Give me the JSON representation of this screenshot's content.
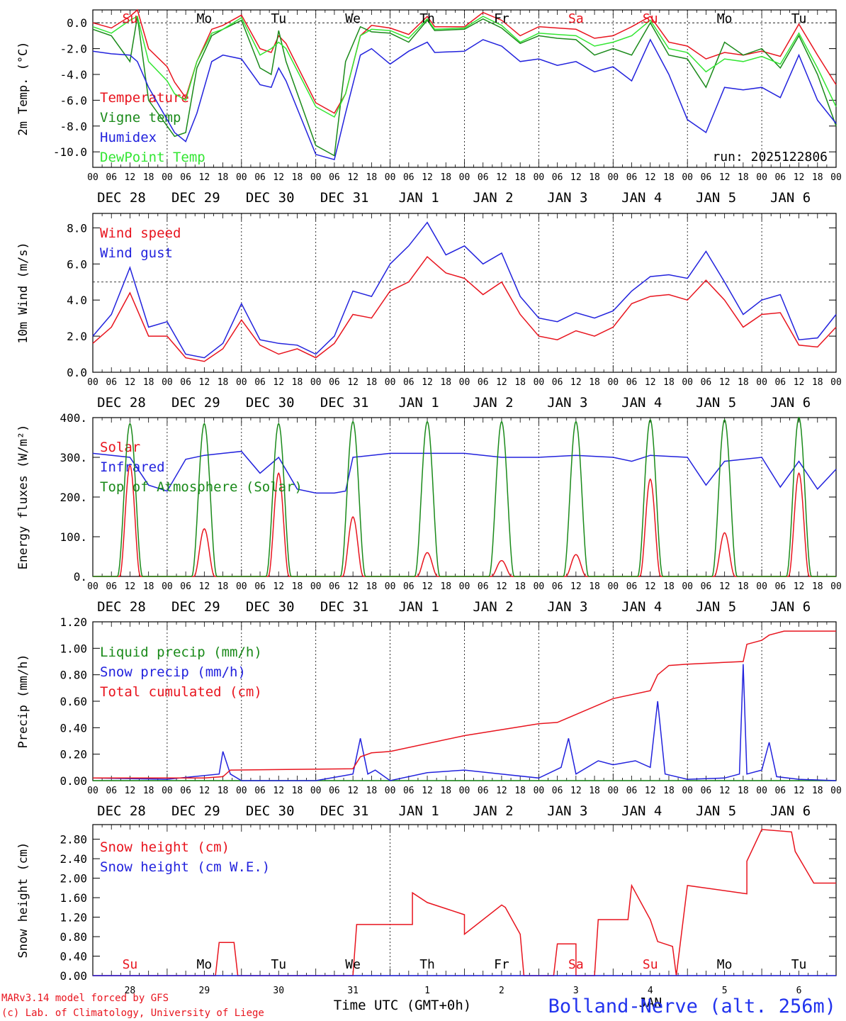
{
  "meta": {
    "run_label": "run: 2025122806",
    "credit_line1": "MARv3.14 model forced by GFS",
    "credit_line2": "(c) Lab. of Climatology, University of Liege",
    "station": "Bolland-Nerve (alt. 256m)",
    "xlabel": "Time UTC (GMT+0h)",
    "colors": {
      "red": "#e8141e",
      "green": "#1a8a1a",
      "blue": "#2222dd",
      "lightgreen": "#33e633",
      "black": "#000000"
    }
  },
  "hour_ticks": [
    "00",
    "06",
    "12",
    "18"
  ],
  "date_labels": [
    "DEC 28",
    "DEC 29",
    "DEC 30",
    "DEC 31",
    "JAN  1",
    "JAN  2",
    "JAN  3",
    "JAN  4",
    "JAN  5",
    "JAN  6"
  ],
  "day_numbers": [
    "28",
    "29",
    "30",
    "31",
    "1",
    "2",
    "3",
    "4",
    "5",
    "6"
  ],
  "month_label": "JAN",
  "weekdays": [
    {
      "label": "Su",
      "weekend": true,
      "day": 0.5
    },
    {
      "label": "Mo",
      "weekend": false,
      "day": 1.5
    },
    {
      "label": "Tu",
      "weekend": false,
      "day": 2.5
    },
    {
      "label": "We",
      "weekend": false,
      "day": 3.5
    },
    {
      "label": "Th",
      "weekend": false,
      "day": 4.5
    },
    {
      "label": "Fr",
      "weekend": false,
      "day": 5.5
    },
    {
      "label": "Sa",
      "weekend": true,
      "day": 6.5
    },
    {
      "label": "Su",
      "weekend": true,
      "day": 7.5
    },
    {
      "label": "Mo",
      "weekend": false,
      "day": 8.5
    },
    {
      "label": "Tu",
      "weekend": false,
      "day": 9.5
    }
  ],
  "chart_data": [
    {
      "id": "temperature",
      "type": "line",
      "ylabel": "2m Temp. (°C)",
      "ylim": [
        -11.2,
        1.0
      ],
      "yticks": [
        -10,
        -8,
        -6,
        -4,
        -2,
        0
      ],
      "ytick_labels": [
        "-10.0",
        "-8.0",
        "-6.0",
        "-4.0",
        "-2.0",
        "0.0"
      ],
      "hline": 0,
      "weekday_row": true,
      "series": [
        {
          "name": "Temperature",
          "color": "red",
          "x": [
            0,
            0.25,
            0.5,
            0.6,
            0.75,
            1.0,
            1.1,
            1.25,
            1.4,
            1.6,
            1.75,
            2.0,
            2.25,
            2.4,
            2.5,
            2.6,
            3.0,
            3.25,
            3.4,
            3.6,
            3.75,
            4.0,
            4.25,
            4.5,
            4.6,
            5.0,
            5.25,
            5.5,
            5.75,
            6.0,
            6.25,
            6.5,
            6.75,
            7.0,
            7.25,
            7.5,
            7.75,
            8.0,
            8.25,
            8.5,
            8.75,
            9.0,
            9.25,
            9.5,
            9.75,
            10.0
          ],
          "y": [
            0.0,
            -0.4,
            0.5,
            1.0,
            -2.0,
            -3.4,
            -4.6,
            -5.8,
            -3.0,
            -0.5,
            -0.2,
            0.6,
            -2.0,
            -2.3,
            -1.0,
            -1.6,
            -6.2,
            -7.0,
            -5.5,
            -1.0,
            -0.2,
            -0.4,
            -0.9,
            0.5,
            -0.3,
            -0.3,
            0.8,
            0.2,
            -1.0,
            -0.3,
            -0.4,
            -0.5,
            -1.2,
            -1.0,
            -0.3,
            0.5,
            -1.5,
            -1.8,
            -2.8,
            -2.3,
            -2.5,
            -2.2,
            -2.6,
            -0.1,
            -2.5,
            -4.8
          ]
        },
        {
          "name": "Vigne temp",
          "color": "green",
          "x": [
            0,
            0.25,
            0.5,
            0.6,
            0.75,
            1.0,
            1.1,
            1.25,
            1.4,
            1.6,
            1.75,
            2.0,
            2.25,
            2.4,
            2.5,
            2.6,
            3.0,
            3.25,
            3.4,
            3.6,
            3.75,
            4.0,
            4.25,
            4.5,
            4.6,
            5.0,
            5.25,
            5.5,
            5.75,
            6.0,
            6.25,
            6.5,
            6.75,
            7.0,
            7.25,
            7.5,
            7.75,
            8.0,
            8.25,
            8.5,
            8.75,
            9.0,
            9.25,
            9.5,
            9.75,
            10.0
          ],
          "y": [
            -0.5,
            -1.0,
            -3.0,
            0.5,
            -6.0,
            -8.0,
            -8.8,
            -8.5,
            -3.5,
            -1.0,
            -0.5,
            0.2,
            -3.5,
            -4.0,
            -0.6,
            -3.0,
            -9.5,
            -10.3,
            -3.0,
            -0.3,
            -0.7,
            -0.8,
            -1.5,
            0.2,
            -0.6,
            -0.5,
            0.3,
            -0.4,
            -1.6,
            -1.0,
            -1.2,
            -1.3,
            -2.5,
            -2.0,
            -2.5,
            0.0,
            -2.5,
            -2.8,
            -5.0,
            -1.5,
            -2.5,
            -2.0,
            -3.5,
            -1.0,
            -4.0,
            -8.0
          ]
        },
        {
          "name": "Humidex",
          "color": "blue",
          "x": [
            0,
            0.25,
            0.5,
            0.6,
            0.75,
            1.0,
            1.1,
            1.25,
            1.4,
            1.6,
            1.75,
            2.0,
            2.25,
            2.4,
            2.5,
            2.6,
            3.0,
            3.25,
            3.4,
            3.6,
            3.75,
            4.0,
            4.25,
            4.5,
            4.6,
            5.0,
            5.25,
            5.5,
            5.75,
            6.0,
            6.25,
            6.5,
            6.75,
            7.0,
            7.25,
            7.5,
            7.75,
            8.0,
            8.25,
            8.5,
            8.75,
            9.0,
            9.25,
            9.5,
            9.75,
            10.0
          ],
          "y": [
            -2.2,
            -2.4,
            -2.5,
            -3.0,
            -5.0,
            -7.5,
            -8.5,
            -9.2,
            -7.0,
            -3.0,
            -2.5,
            -2.8,
            -4.8,
            -5.0,
            -3.5,
            -4.5,
            -10.2,
            -10.6,
            -7.0,
            -2.5,
            -2.0,
            -3.2,
            -2.2,
            -1.5,
            -2.3,
            -2.2,
            -1.3,
            -1.8,
            -3.0,
            -2.8,
            -3.3,
            -3.0,
            -3.8,
            -3.4,
            -4.5,
            -1.3,
            -4.0,
            -7.5,
            -8.5,
            -5.0,
            -5.2,
            -5.0,
            -5.8,
            -2.5,
            -6.0,
            -7.8
          ]
        },
        {
          "name": "DewPoint Temp",
          "color": "lightgreen",
          "x": [
            0,
            0.25,
            0.5,
            0.6,
            0.75,
            1.0,
            1.1,
            1.25,
            1.4,
            1.6,
            1.75,
            2.0,
            2.25,
            2.4,
            2.5,
            2.6,
            3.0,
            3.25,
            3.4,
            3.6,
            3.75,
            4.0,
            4.25,
            4.5,
            4.6,
            5.0,
            5.25,
            5.5,
            5.75,
            6.0,
            6.25,
            6.5,
            6.75,
            7.0,
            7.25,
            7.5,
            7.75,
            8.0,
            8.25,
            8.5,
            8.75,
            9.0,
            9.25,
            9.5,
            9.75,
            10.0
          ],
          "y": [
            -0.3,
            -0.8,
            0.2,
            0.5,
            -3.0,
            -4.5,
            -5.5,
            -6.0,
            -3.0,
            -0.8,
            -0.5,
            0.4,
            -2.5,
            -2.0,
            -1.5,
            -2.0,
            -6.5,
            -7.3,
            -5.5,
            -1.0,
            -0.5,
            -0.6,
            -1.2,
            0.3,
            -0.5,
            -0.4,
            0.5,
            -0.2,
            -1.5,
            -0.8,
            -0.9,
            -1.0,
            -1.8,
            -1.5,
            -1.0,
            0.2,
            -2.0,
            -2.3,
            -3.8,
            -2.8,
            -3.0,
            -2.6,
            -3.2,
            -0.8,
            -3.5,
            -6.5
          ]
        }
      ]
    },
    {
      "id": "wind",
      "type": "line",
      "ylabel": "10m Wind (m/s)",
      "ylim": [
        0,
        8.8
      ],
      "yticks": [
        0,
        2,
        4,
        6,
        8
      ],
      "ytick_labels": [
        "0.0",
        "2.0",
        "4.0",
        "6.0",
        "8.0"
      ],
      "hline": 5,
      "series": [
        {
          "name": "Wind speed",
          "color": "red",
          "x": [
            0,
            0.25,
            0.5,
            0.75,
            1.0,
            1.25,
            1.5,
            1.75,
            2.0,
            2.25,
            2.5,
            2.75,
            3.0,
            3.25,
            3.5,
            3.75,
            4.0,
            4.25,
            4.5,
            4.75,
            5.0,
            5.25,
            5.5,
            5.75,
            6.0,
            6.25,
            6.5,
            6.75,
            7.0,
            7.25,
            7.5,
            7.75,
            8.0,
            8.25,
            8.5,
            8.75,
            9.0,
            9.25,
            9.5,
            9.75,
            10.0
          ],
          "y": [
            1.6,
            2.5,
            4.4,
            2.0,
            2.0,
            0.8,
            0.6,
            1.3,
            2.9,
            1.5,
            1.0,
            1.3,
            0.8,
            1.6,
            3.2,
            3.0,
            4.5,
            5.0,
            6.4,
            5.5,
            5.2,
            4.3,
            5.0,
            3.2,
            2.0,
            1.8,
            2.3,
            2.0,
            2.5,
            3.8,
            4.2,
            4.3,
            4.0,
            5.1,
            4.0,
            2.5,
            3.2,
            3.3,
            1.5,
            1.4,
            2.5
          ]
        },
        {
          "name": "Wind gust",
          "color": "blue",
          "x": [
            0,
            0.25,
            0.5,
            0.75,
            1.0,
            1.25,
            1.5,
            1.75,
            2.0,
            2.25,
            2.5,
            2.75,
            3.0,
            3.25,
            3.5,
            3.75,
            4.0,
            4.25,
            4.5,
            4.75,
            5.0,
            5.25,
            5.5,
            5.75,
            6.0,
            6.25,
            6.5,
            6.75,
            7.0,
            7.25,
            7.5,
            7.75,
            8.0,
            8.25,
            8.5,
            8.75,
            9.0,
            9.25,
            9.5,
            9.75,
            10.0
          ],
          "y": [
            2.0,
            3.2,
            5.8,
            2.5,
            2.8,
            1.0,
            0.8,
            1.6,
            3.8,
            1.8,
            1.6,
            1.5,
            1.0,
            2.0,
            4.5,
            4.2,
            6.0,
            7.0,
            8.3,
            6.5,
            7.0,
            6.0,
            6.6,
            4.2,
            3.0,
            2.8,
            3.3,
            3.0,
            3.4,
            4.5,
            5.3,
            5.4,
            5.2,
            6.7,
            5.0,
            3.2,
            4.0,
            4.3,
            1.8,
            1.9,
            3.2
          ]
        }
      ]
    },
    {
      "id": "energy",
      "type": "line",
      "ylabel": "Energy fluxes (W/m²)",
      "ylim": [
        0,
        400
      ],
      "yticks": [
        0,
        100,
        200,
        300,
        400
      ],
      "ytick_labels": [
        "0.",
        "100.",
        "200.",
        "300.",
        "400."
      ],
      "series": [
        {
          "name": "Solar",
          "color": "red",
          "peaks": [
            280,
            120,
            260,
            150,
            60,
            40,
            55,
            245,
            110,
            260
          ]
        },
        {
          "name": "Infrared",
          "color": "blue",
          "x": [
            0,
            0.5,
            0.75,
            1.0,
            1.25,
            1.5,
            1.75,
            2.0,
            2.25,
            2.5,
            2.75,
            3.0,
            3.25,
            3.4,
            3.5,
            4.0,
            4.5,
            5.0,
            5.5,
            6.0,
            6.5,
            7.0,
            7.25,
            7.5,
            8.0,
            8.25,
            8.5,
            9.0,
            9.25,
            9.5,
            9.75,
            10.0
          ],
          "y": [
            310,
            300,
            230,
            215,
            295,
            305,
            310,
            315,
            260,
            300,
            220,
            210,
            210,
            215,
            300,
            310,
            310,
            310,
            300,
            300,
            305,
            300,
            290,
            305,
            300,
            230,
            290,
            300,
            225,
            290,
            220,
            270
          ]
        },
        {
          "name": "Top of Atmosphere (Solar)",
          "color": "green",
          "peaks": [
            385,
            385,
            385,
            390,
            390,
            390,
            390,
            395,
            395,
            400
          ]
        }
      ]
    },
    {
      "id": "precip",
      "type": "line",
      "ylabel": "Precip (mm/h)",
      "ylim": [
        0,
        1.2
      ],
      "yticks": [
        0,
        0.2,
        0.4,
        0.6,
        0.8,
        1.0,
        1.2
      ],
      "ytick_labels": [
        "0.00",
        "0.20",
        "0.40",
        "0.60",
        "0.80",
        "1.00",
        "1.20"
      ],
      "series": [
        {
          "name": "Liquid precip (mm/h)",
          "color": "green",
          "x": [
            0,
            10
          ],
          "y": [
            0,
            0
          ]
        },
        {
          "name": "Snow precip (mm/h)",
          "color": "blue",
          "x": [
            0,
            1.0,
            1.7,
            1.75,
            1.85,
            2.0,
            3.0,
            3.5,
            3.6,
            3.7,
            3.8,
            4.0,
            4.5,
            5.0,
            5.5,
            6.0,
            6.3,
            6.4,
            6.5,
            6.8,
            7.0,
            7.3,
            7.5,
            7.6,
            7.7,
            8.0,
            8.5,
            8.7,
            8.75,
            8.8,
            9.0,
            9.1,
            9.2,
            9.5,
            10.0
          ],
          "y": [
            0.02,
            0.01,
            0.05,
            0.22,
            0.05,
            0.0,
            0.0,
            0.05,
            0.32,
            0.05,
            0.08,
            0.0,
            0.06,
            0.08,
            0.05,
            0.02,
            0.1,
            0.32,
            0.05,
            0.15,
            0.12,
            0.15,
            0.1,
            0.6,
            0.05,
            0.01,
            0.02,
            0.05,
            0.88,
            0.05,
            0.08,
            0.29,
            0.03,
            0.01,
            0.0
          ]
        },
        {
          "name": "Total cumulated (cm)",
          "color": "red",
          "x": [
            0,
            1.5,
            1.75,
            1.85,
            3.5,
            3.6,
            3.75,
            4.0,
            5.0,
            6.0,
            6.25,
            6.5,
            7.0,
            7.5,
            7.6,
            7.75,
            8.0,
            8.75,
            8.8,
            9.0,
            9.1,
            9.3,
            10.0
          ],
          "y": [
            0.02,
            0.02,
            0.03,
            0.08,
            0.09,
            0.18,
            0.21,
            0.22,
            0.34,
            0.43,
            0.44,
            0.5,
            0.62,
            0.68,
            0.8,
            0.87,
            0.88,
            0.9,
            1.03,
            1.06,
            1.1,
            1.13,
            1.13
          ]
        }
      ]
    },
    {
      "id": "snow",
      "type": "line",
      "ylabel": "Snow height (cm)",
      "ylim": [
        0,
        3.1
      ],
      "yticks": [
        0,
        0.4,
        0.8,
        1.2,
        1.6,
        2.0,
        2.4,
        2.8
      ],
      "ytick_labels": [
        "0.00",
        "0.40",
        "0.80",
        "1.20",
        "1.60",
        "2.00",
        "2.40",
        "2.80"
      ],
      "weekday_row": true,
      "series": [
        {
          "name": "Snow height (cm)",
          "color": "red",
          "x": [
            0,
            1.65,
            1.7,
            1.9,
            1.95,
            3.5,
            3.55,
            3.7,
            4.0,
            4.3,
            4.3,
            4.5,
            5.0,
            5.0,
            5.5,
            5.55,
            5.75,
            5.8,
            6.2,
            6.25,
            6.5,
            6.5,
            6.75,
            6.8,
            7.2,
            7.25,
            7.5,
            7.6,
            7.8,
            7.85,
            8.0,
            8.8,
            8.8,
            9.0,
            9.4,
            9.45,
            9.7,
            10.0
          ],
          "y": [
            0,
            0,
            0.68,
            0.68,
            0,
            0,
            1.05,
            1.05,
            1.05,
            1.05,
            1.7,
            1.5,
            1.25,
            0.85,
            1.45,
            1.4,
            0.85,
            0,
            0,
            0.65,
            0.65,
            0,
            0,
            1.15,
            1.15,
            1.85,
            1.15,
            0.7,
            0.6,
            0,
            1.85,
            1.68,
            2.35,
            3.0,
            2.95,
            2.55,
            1.9,
            1.9
          ]
        },
        {
          "name": "Snow height (cm W.E.)",
          "color": "blue",
          "x": [
            0,
            10
          ],
          "y": [
            0,
            0
          ]
        }
      ]
    }
  ]
}
